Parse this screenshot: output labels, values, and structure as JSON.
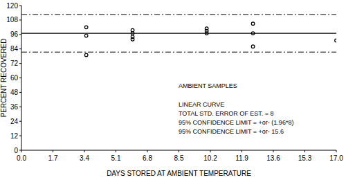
{
  "chart_data": {
    "type": "scatter",
    "x_label": "DAYS STORED AT AMBIENT TEMPERATURE",
    "y_label": "PERCENT RECOVERED",
    "x": [
      3.5,
      3.5,
      3.5,
      6,
      6,
      6,
      6,
      10,
      10,
      10,
      12.5,
      12.5,
      12.5,
      17
    ],
    "values": [
      102,
      95,
      79,
      99.5,
      97,
      94,
      92,
      101,
      99,
      97,
      105,
      97,
      86,
      91
    ],
    "color": "#000000",
    "marker": "circle",
    "mean_line": 97,
    "confidence_limits": [
      81.4,
      112.6
    ],
    "xlim": [
      0,
      17
    ],
    "ylim": [
      0,
      120
    ],
    "xticks": [
      {
        "value": 0,
        "label": "0.0"
      },
      1.7,
      3.4,
      5.1,
      6.8,
      8.5,
      10.2,
      11.9,
      13.6,
      15.3,
      {
        "value": 17,
        "label": "17.0"
      }
    ],
    "yticks": [
      0,
      12,
      24,
      36,
      48,
      60,
      72,
      84,
      96,
      108,
      120
    ],
    "grid": false,
    "annotations": [
      "AMBIENT SAMPLES",
      "LINEAR CURVE",
      "TOTAL STD. ERROR OF EST. = 8",
      "95% CONFIDENCE LIMIT = +or- (1.96*8)",
      "95% CONFIDENCE LIMIT = +or- 15.6"
    ]
  }
}
